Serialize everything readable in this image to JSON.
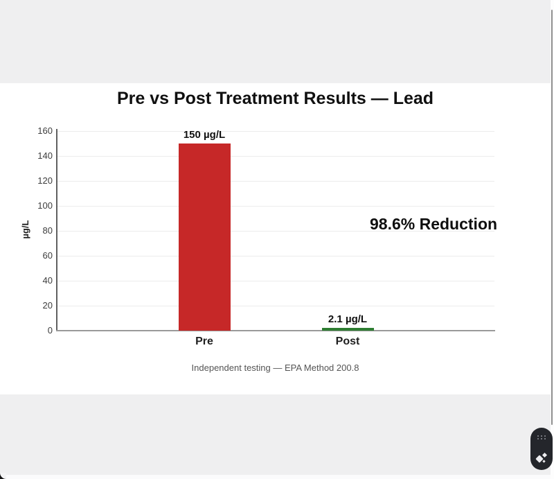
{
  "chart_data": {
    "type": "bar",
    "title": "Pre vs Post Treatment Results — Lead",
    "categories": [
      "Pre",
      "Post"
    ],
    "values": [
      150,
      2.1
    ],
    "bar_value_labels": [
      "150 µg/L",
      "2.1 µg/L"
    ],
    "bar_colors": [
      "#c62828",
      "#2e7d32"
    ],
    "xlabel": "",
    "ylabel": "µg/L",
    "ylim": [
      0,
      160
    ],
    "yticks": [
      0,
      20,
      40,
      60,
      80,
      100,
      120,
      140,
      160
    ],
    "grid": true,
    "legend_position": "none",
    "annotation": "98.6% Reduction",
    "caption": "Independent testing — EPA Method 200.8"
  },
  "colors": {
    "pre_bar": "#c62828",
    "post_bar": "#2e7d32",
    "band_gray": "#efeff0",
    "page_background": "#ffffff",
    "widget_background": "#24262b"
  },
  "widget": {
    "icons": [
      "drag-handle-dots",
      "ai-sparkle"
    ]
  }
}
